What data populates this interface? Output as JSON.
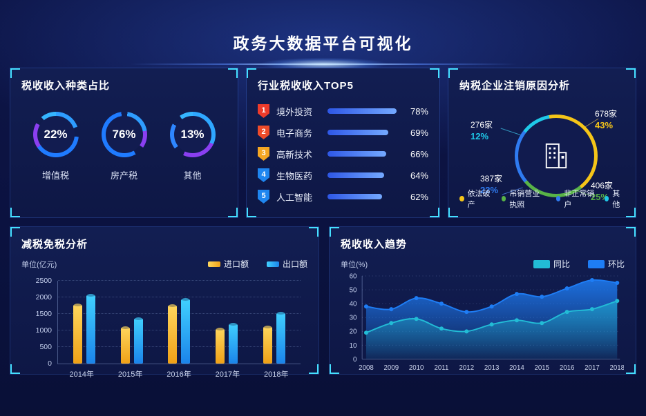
{
  "page": {
    "title": "政务大数据平台可视化"
  },
  "panels": {
    "tax_types": {
      "title": "税收收入种类占比"
    },
    "top5": {
      "title": "行业税收收入TOP5"
    },
    "cancellation": {
      "title": "纳税企业注销原因分析"
    },
    "tax_reduction": {
      "title": "减税免税分析"
    },
    "trend": {
      "title": "税收收入趋势"
    }
  },
  "chart_data": [
    {
      "id": "tax-type-rings",
      "type": "pie",
      "title": "税收收入种类占比",
      "categories": [
        "增值税",
        "房产税",
        "其他"
      ],
      "values": [
        22,
        76,
        13
      ],
      "value_labels": [
        "22%",
        "76%",
        "13%"
      ],
      "unit": "%"
    },
    {
      "id": "industry-tax-top5",
      "type": "bar",
      "orientation": "horizontal",
      "title": "行业税收收入TOP5",
      "categories": [
        "境外投资",
        "电子商务",
        "高新技术",
        "生物医药",
        "人工智能"
      ],
      "values": [
        78,
        69,
        66,
        64,
        62
      ],
      "value_labels": [
        "78%",
        "69%",
        "66%",
        "64%",
        "62%"
      ],
      "ranks": [
        "1",
        "2",
        "3",
        "4",
        "5"
      ],
      "rank_colors": [
        "#ee3b2b",
        "#ee4b2a",
        "#f5a623",
        "#1f86f0",
        "#1f86f0"
      ],
      "bar_color": "#3a6df0"
    },
    {
      "id": "cancellation-donut",
      "type": "pie",
      "title": "纳税企业注销原因分析",
      "start_angle_deg": -10,
      "slices": [
        {
          "label": "依法破产",
          "count": "678家",
          "pct": 43,
          "pct_label": "43%",
          "color": "#f5c518"
        },
        {
          "label": "吊销营业执照",
          "count": "406家",
          "pct": 25,
          "pct_label": "25%",
          "color": "#58b347"
        },
        {
          "label": "非正常销户",
          "count": "387家",
          "pct": 22,
          "pct_label": "22%",
          "color": "#2f7bf0"
        },
        {
          "label": "其他",
          "count": "276家",
          "pct": 12,
          "pct_label": "12%",
          "color": "#1fc9e8"
        }
      ]
    },
    {
      "id": "tax-reduction-bars",
      "type": "bar",
      "title": "减税免税分析",
      "ylabel": "单位(亿元)",
      "categories": [
        "2014年",
        "2015年",
        "2016年",
        "2017年",
        "2018年"
      ],
      "series": [
        {
          "name": "进口额",
          "colors": [
            "#ffd75e",
            "#efa117"
          ],
          "values": [
            1820,
            1120,
            1800,
            1080,
            1150
          ]
        },
        {
          "name": "出口额",
          "colors": [
            "#41d1ff",
            "#1b84ea"
          ],
          "values": [
            2100,
            1400,
            1980,
            1220,
            1560
          ]
        }
      ],
      "ylim": [
        0,
        2500
      ],
      "yticks": [
        0,
        500,
        1000,
        1500,
        2000,
        2500
      ]
    },
    {
      "id": "tax-revenue-trend",
      "type": "area",
      "title": "税收收入趋势",
      "ylabel": "单位(%)",
      "x": [
        "2008",
        "2009",
        "2010",
        "2011",
        "2012",
        "2013",
        "2014",
        "2015",
        "2016",
        "2017",
        "2018"
      ],
      "series": [
        {
          "name": "同比",
          "color": "#22bcd6",
          "values": [
            19,
            26,
            29,
            22,
            20,
            25,
            28,
            26,
            34,
            36,
            42
          ]
        },
        {
          "name": "环比",
          "color": "#1e7df5",
          "values": [
            38,
            36,
            44,
            40,
            34,
            38,
            47,
            45,
            51,
            57,
            55
          ]
        }
      ],
      "ylim": [
        0,
        60
      ],
      "yticks": [
        0,
        10,
        20,
        30,
        40,
        50,
        60
      ]
    }
  ]
}
